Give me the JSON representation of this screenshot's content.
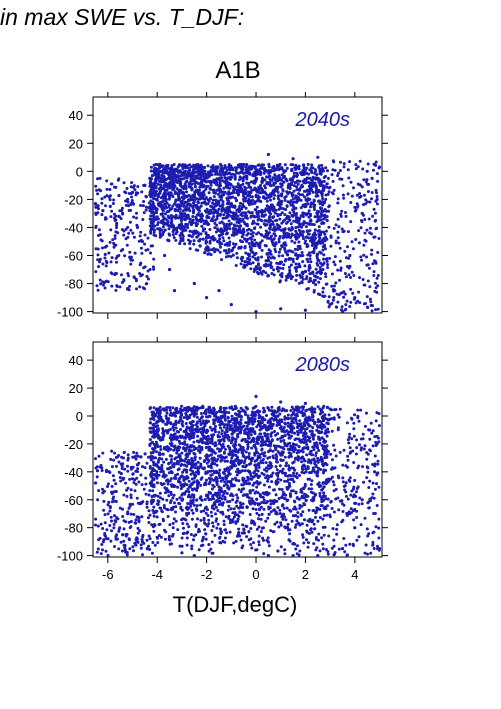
{
  "heading": "in max SWE vs. T_DJF:",
  "scenario": "A1B",
  "x_axis_title": "T(DJF,degC)",
  "colors": {
    "points": "#1c1cb0",
    "label": "#1a1aa8",
    "frame": "#000000"
  },
  "chart_data": [
    {
      "type": "scatter",
      "panel_label": "2040s",
      "xlim": [
        -6.6,
        5.1
      ],
      "ylim": [
        -101,
        53
      ],
      "x_ticks": [
        -6,
        -4,
        -2,
        0,
        2,
        4
      ],
      "y_ticks": [
        40,
        20,
        0,
        -20,
        -40,
        -60,
        -80,
        -100
      ],
      "y_tick_labels": [
        "40",
        "20",
        "0",
        "-20",
        "-40",
        "-60",
        "-80",
        "-100"
      ],
      "x_tick_labels_shown": false,
      "grid": false,
      "series": [
        {
          "values_description_free": true,
          "points": [
            [
              -6.5,
              -23
            ],
            [
              -6.2,
              -28
            ],
            [
              -5.9,
              -25
            ],
            [
              -5.7,
              -35
            ],
            [
              -5.4,
              -30
            ],
            [
              -5.2,
              -20
            ],
            [
              -5.0,
              -15
            ],
            [
              -4.8,
              -40
            ],
            [
              -4.6,
              -50
            ],
            [
              -4.5,
              -10
            ],
            [
              -4.3,
              -5
            ],
            [
              -4.1,
              2
            ],
            [
              -3.9,
              5
            ],
            [
              -3.7,
              -60
            ],
            [
              -3.5,
              -70
            ],
            [
              -3.3,
              -85
            ],
            [
              -3.0,
              4
            ],
            [
              -2.5,
              -80
            ],
            [
              -2.0,
              -90
            ],
            [
              -1.5,
              -85
            ],
            [
              -1.0,
              -95
            ],
            [
              0.0,
              -100
            ],
            [
              0.5,
              12
            ],
            [
              1.0,
              -98
            ],
            [
              1.5,
              9
            ],
            [
              2.0,
              -99
            ],
            [
              2.5,
              10
            ],
            [
              3.0,
              -95
            ],
            [
              3.5,
              -100
            ],
            [
              4.0,
              -90
            ],
            [
              4.3,
              -30
            ],
            [
              4.5,
              0
            ],
            [
              4.7,
              -5
            ],
            [
              5.0,
              3
            ],
            [
              4.9,
              -20
            ],
            [
              3.8,
              -60
            ]
          ]
        }
      ]
    },
    {
      "type": "scatter",
      "panel_label": "2080s",
      "xlim": [
        -6.6,
        5.1
      ],
      "ylim": [
        -101,
        53
      ],
      "x_ticks": [
        -6,
        -4,
        -2,
        0,
        2,
        4
      ],
      "x_tick_labels": [
        "-6",
        "-4",
        "-2",
        "0",
        "2",
        "4"
      ],
      "y_ticks": [
        40,
        20,
        0,
        -20,
        -40,
        -60,
        -80,
        -100
      ],
      "y_tick_labels": [
        "40",
        "20",
        "0",
        "-20",
        "-40",
        "-60",
        "-80",
        "-100"
      ],
      "grid": false,
      "series": [
        {
          "points": [
            [
              -6.5,
              -48
            ],
            [
              -6.2,
              -55
            ],
            [
              -5.9,
              -65
            ],
            [
              -5.7,
              -75
            ],
            [
              -5.4,
              -85
            ],
            [
              -5.2,
              -70
            ],
            [
              -5.0,
              -45
            ],
            [
              -4.8,
              -35
            ],
            [
              -4.6,
              -90
            ],
            [
              -4.4,
              -95
            ],
            [
              -4.2,
              -30
            ],
            [
              -4.0,
              5
            ],
            [
              -3.5,
              6
            ],
            [
              -3.0,
              -98
            ],
            [
              -2.5,
              -100
            ],
            [
              0.0,
              14
            ],
            [
              0.5,
              -100
            ],
            [
              1.0,
              10
            ],
            [
              1.5,
              -100
            ],
            [
              2.0,
              9
            ],
            [
              2.5,
              -100
            ],
            [
              3.0,
              5
            ],
            [
              3.5,
              -95
            ],
            [
              4.0,
              -80
            ],
            [
              4.3,
              -60
            ],
            [
              4.6,
              -10
            ],
            [
              4.8,
              -40
            ],
            [
              5.0,
              -95
            ],
            [
              4.9,
              -20
            ]
          ]
        }
      ]
    }
  ]
}
